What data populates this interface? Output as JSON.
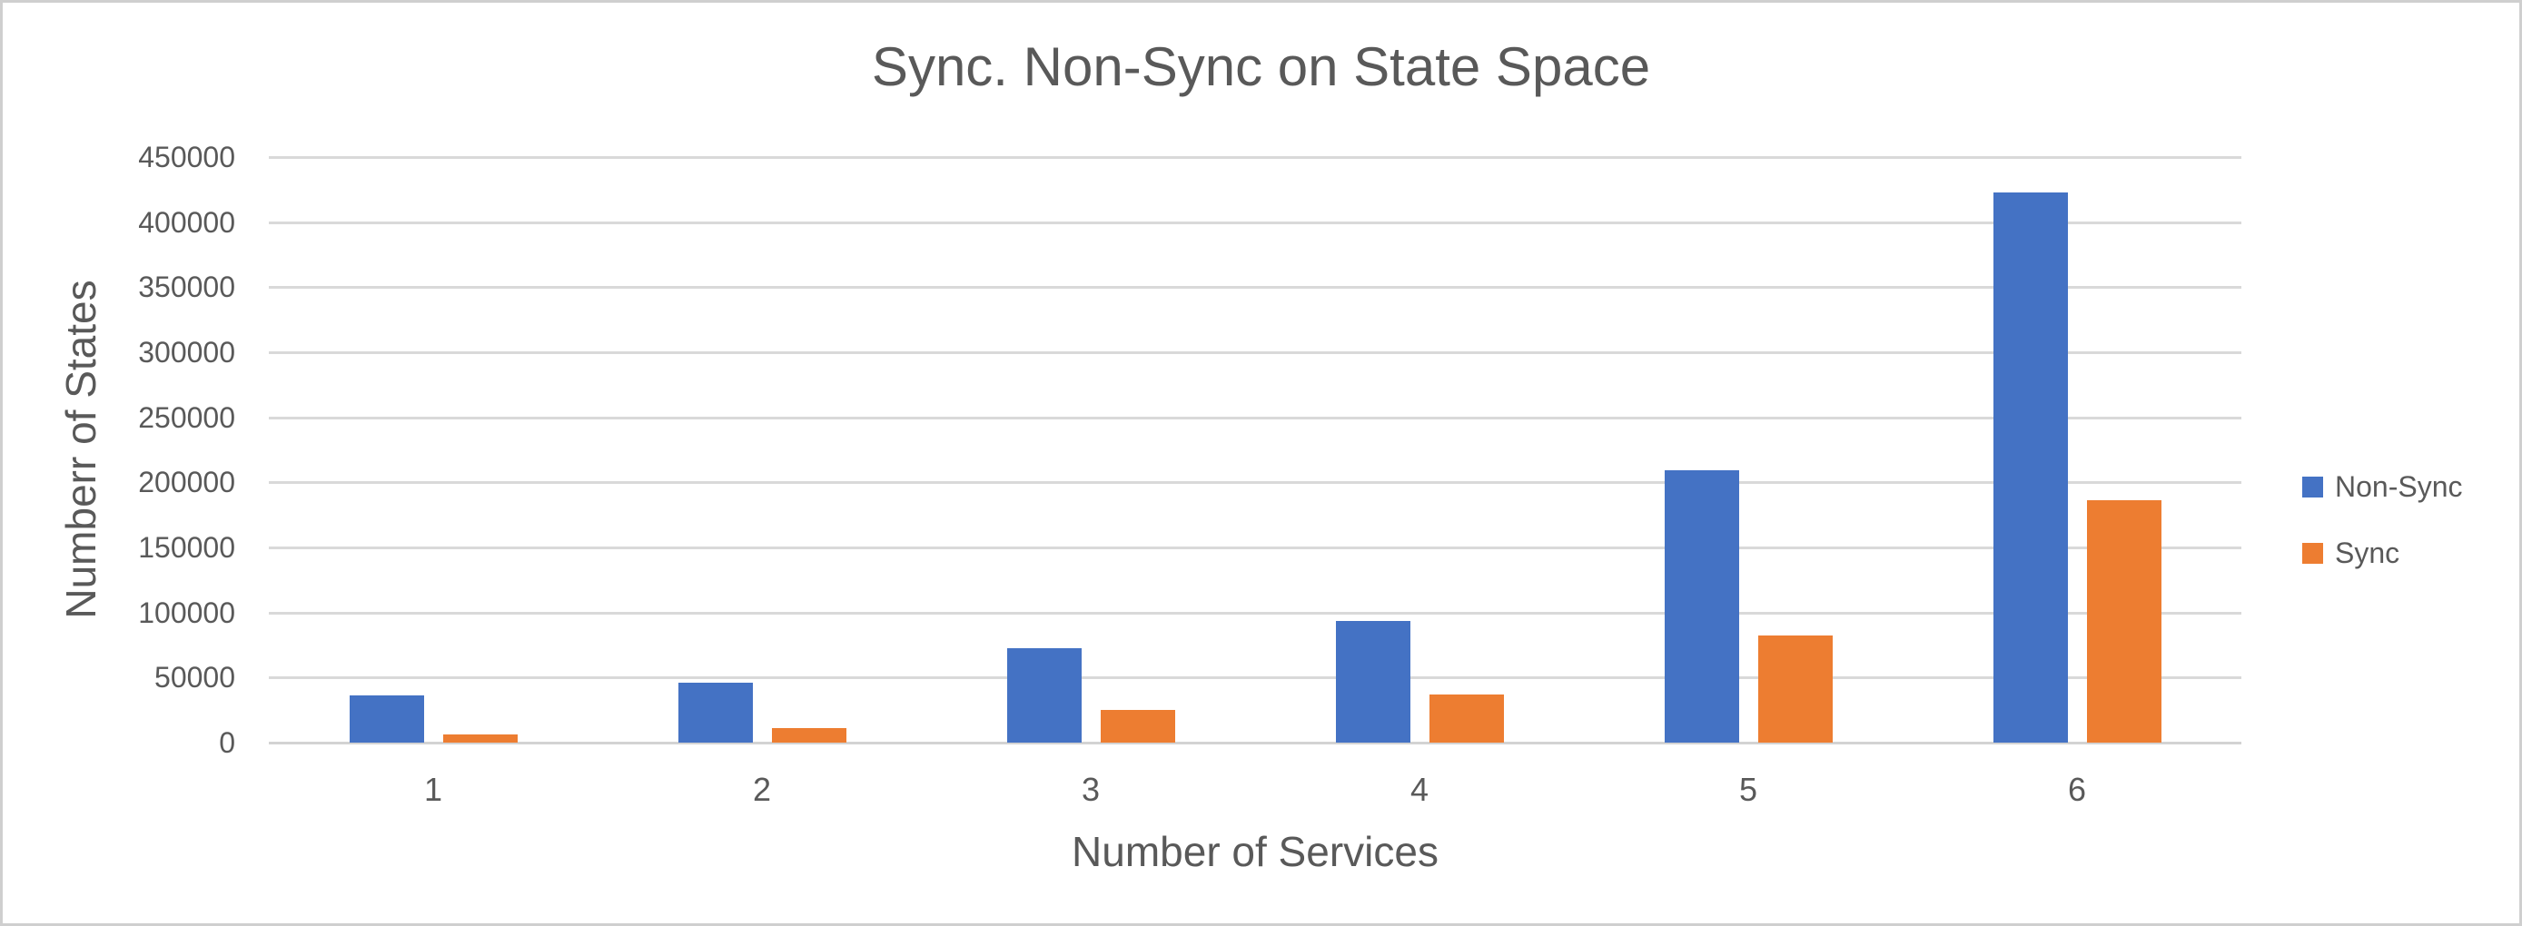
{
  "chart_data": {
    "type": "bar",
    "title": "Sync. Non-Sync on State Space",
    "xlabel": "Number of Services",
    "ylabel": "Numberr of States",
    "categories": [
      "1",
      "2",
      "3",
      "4",
      "5",
      "6"
    ],
    "series": [
      {
        "name": "Non-Sync",
        "color": "#4472C4",
        "values": [
          36500,
          46000,
          72500,
          93500,
          209500,
          423000
        ]
      },
      {
        "name": "Sync",
        "color": "#ED7D31",
        "values": [
          6000,
          11500,
          25000,
          37000,
          82500,
          186000
        ]
      }
    ],
    "ylim": [
      0,
      450000
    ],
    "ytick_step": 50000,
    "ytick_labels": [
      "0",
      "50000",
      "100000",
      "150000",
      "200000",
      "250000",
      "300000",
      "350000",
      "400000",
      "450000"
    ],
    "grid": true,
    "legend_position": "right"
  },
  "colors": {
    "non_sync": "#4472C4",
    "sync": "#ED7D31",
    "text": "#595959",
    "gridline": "#D9D9D9",
    "background": "#FFFFFF",
    "border": "#CFCFCF"
  }
}
